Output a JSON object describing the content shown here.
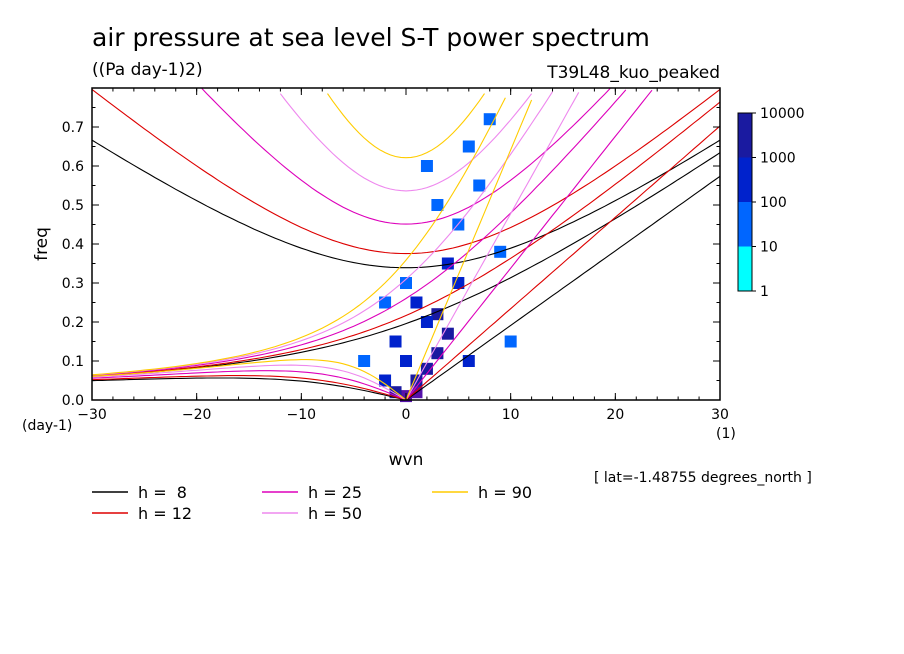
{
  "chart_data": {
    "type": "heatmap",
    "title": "air pressure at sea level S-T power spectrum",
    "units": "((Pa day-1)2)",
    "experiment": "T39L48_kuo_peaked",
    "xlabel": "wvn",
    "ylabel": "freq",
    "x_unit": "(1)",
    "y_unit": "(day-1)",
    "xlim": [
      -30,
      30
    ],
    "ylim": [
      0,
      0.8
    ],
    "xticks": [
      -30,
      -20,
      -10,
      0,
      10,
      20,
      30
    ],
    "yticks": [
      0.0,
      0.1,
      0.2,
      0.3,
      0.4,
      0.5,
      0.6,
      0.7
    ],
    "ytick_labels": [
      "0.0",
      "0.1",
      "0.2",
      "0.3",
      "0.4",
      "0.5",
      "0.6",
      "0.7"
    ],
    "footnote": "[ lat=-1.48755 degrees_north ]",
    "colorbar": {
      "labels": [
        "1",
        "10",
        "100",
        "1000",
        "10000"
      ],
      "colors": [
        "#00ffff",
        "#0066ff",
        "#0022cc",
        "#1a1aa0",
        "#5511aa"
      ]
    },
    "spectrum_cells": [
      {
        "wvn": 0,
        "freq": 0.01,
        "level": 4
      },
      {
        "wvn": 1,
        "freq": 0.02,
        "level": 4
      },
      {
        "wvn": -1,
        "freq": 0.02,
        "level": 3
      },
      {
        "wvn": 1,
        "freq": 0.05,
        "level": 3
      },
      {
        "wvn": 2,
        "freq": 0.08,
        "level": 3
      },
      {
        "wvn": 3,
        "freq": 0.12,
        "level": 3
      },
      {
        "wvn": 4,
        "freq": 0.17,
        "level": 3
      },
      {
        "wvn": 3,
        "freq": 0.22,
        "level": 3
      },
      {
        "wvn": 2,
        "freq": 0.2,
        "level": 2
      },
      {
        "wvn": 0,
        "freq": 0.1,
        "level": 2
      },
      {
        "wvn": -1,
        "freq": 0.15,
        "level": 2
      },
      {
        "wvn": 5,
        "freq": 0.3,
        "level": 2
      },
      {
        "wvn": 4,
        "freq": 0.35,
        "level": 2
      },
      {
        "wvn": 1,
        "freq": 0.25,
        "level": 2
      },
      {
        "wvn": -2,
        "freq": 0.05,
        "level": 2
      },
      {
        "wvn": 6,
        "freq": 0.1,
        "level": 2
      },
      {
        "wvn": 5,
        "freq": 0.45,
        "level": 1
      },
      {
        "wvn": 3,
        "freq": 0.5,
        "level": 1
      },
      {
        "wvn": 7,
        "freq": 0.55,
        "level": 1
      },
      {
        "wvn": 6,
        "freq": 0.65,
        "level": 1
      },
      {
        "wvn": 8,
        "freq": 0.72,
        "level": 1
      },
      {
        "wvn": 2,
        "freq": 0.6,
        "level": 1
      },
      {
        "wvn": 0,
        "freq": 0.3,
        "level": 1
      },
      {
        "wvn": -2,
        "freq": 0.25,
        "level": 1
      },
      {
        "wvn": 9,
        "freq": 0.38,
        "level": 1
      },
      {
        "wvn": 10,
        "freq": 0.15,
        "level": 1
      },
      {
        "wvn": -4,
        "freq": 0.1,
        "level": 1
      }
    ],
    "series": [
      {
        "name": "h =  8",
        "color": "#000000",
        "h": 8
      },
      {
        "name": "h = 12",
        "color": "#dd0000",
        "h": 12
      },
      {
        "name": "h = 25",
        "color": "#dd00bb",
        "h": 25
      },
      {
        "name": "h = 50",
        "color": "#ee88ee",
        "h": 50
      },
      {
        "name": "h = 90",
        "color": "#ffcc00",
        "h": 90
      }
    ]
  }
}
